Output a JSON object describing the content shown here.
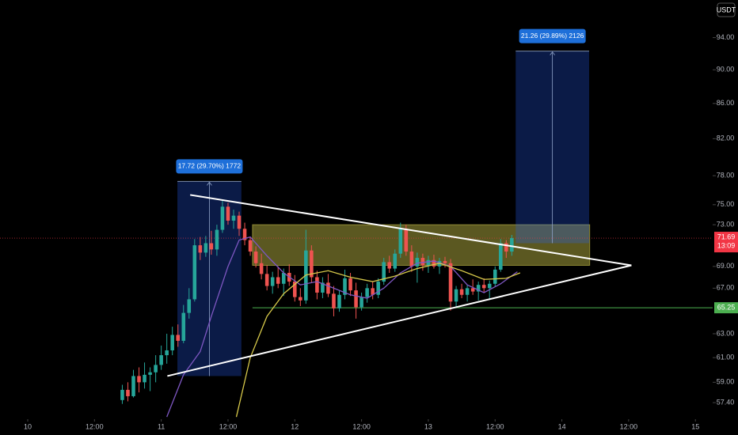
{
  "chart_data": {
    "type": "candlestick",
    "currency": "USDT",
    "x": [
      17,
      18,
      19,
      20,
      21,
      22,
      23,
      24,
      25,
      26,
      27,
      28,
      29,
      30,
      31,
      32,
      33,
      34,
      35,
      36,
      37,
      38,
      39,
      40,
      41,
      42,
      43,
      44,
      45,
      46,
      47,
      48,
      49,
      50,
      51,
      52,
      53,
      54,
      55,
      56,
      57,
      58,
      59,
      60,
      61,
      62,
      63,
      64,
      65,
      66,
      67,
      68,
      69,
      70,
      71,
      72,
      73,
      74,
      75,
      76,
      77,
      78,
      79,
      80,
      81,
      82,
      83,
      84,
      85,
      86,
      87
    ],
    "open": [
      57.6,
      58.4,
      57.9,
      59.5,
      59.0,
      59.6,
      59.8,
      60.4,
      61.2,
      61.6,
      62.9,
      62.4,
      64.8,
      66.0,
      71.0,
      70.3,
      71.2,
      70.6,
      72.5,
      74.8,
      73.4,
      73.9,
      72.6,
      71.5,
      70.4,
      69.3,
      68.3,
      67.2,
      68.0,
      67.4,
      68.4,
      67.6,
      66.2,
      65.9,
      70.5,
      68.0,
      66.6,
      67.5,
      66.5,
      65.2,
      66.4,
      67.9,
      66.8,
      65.3,
      66.2,
      67.0,
      66.4,
      67.6,
      69.4,
      68.8,
      70.2,
      72.6,
      70.4,
      69.0,
      69.8,
      69.1,
      69.6,
      69.0,
      69.5,
      69.3,
      65.8,
      66.9,
      66.4,
      67.0,
      66.7,
      67.3,
      67.0,
      67.4,
      68.7,
      71.2,
      70.4
    ],
    "high": [
      58.8,
      59.0,
      60.0,
      60.2,
      60.6,
      60.2,
      61.2,
      62.0,
      63.0,
      63.6,
      63.8,
      65.5,
      67.0,
      71.6,
      71.8,
      71.9,
      72.4,
      73.0,
      75.5,
      75.2,
      74.5,
      74.3,
      73.2,
      71.8,
      70.9,
      70.2,
      69.1,
      68.5,
      69.0,
      68.8,
      69.2,
      68.2,
      67.0,
      72.5,
      71.0,
      68.6,
      68.0,
      68.3,
      67.2,
      66.8,
      68.7,
      68.4,
      67.5,
      66.6,
      67.4,
      67.6,
      67.9,
      69.8,
      70.0,
      70.6,
      73.2,
      73.0,
      71.0,
      70.3,
      70.2,
      70.0,
      70.1,
      69.8,
      69.9,
      69.7,
      67.2,
      67.4,
      67.3,
      67.8,
      67.6,
      67.9,
      67.7,
      69.0,
      71.6,
      71.5,
      72.0
    ],
    "low": [
      57.3,
      57.5,
      57.8,
      58.2,
      58.5,
      58.3,
      59.0,
      60.0,
      60.5,
      61.2,
      61.9,
      62.2,
      64.3,
      65.8,
      69.6,
      69.9,
      70.1,
      70.0,
      72.2,
      73.0,
      72.6,
      71.9,
      71.0,
      70.0,
      68.9,
      67.8,
      66.8,
      66.5,
      67.0,
      66.3,
      67.2,
      65.8,
      65.4,
      65.6,
      67.5,
      66.0,
      66.1,
      66.2,
      64.5,
      64.9,
      66.0,
      66.3,
      64.3,
      65.0,
      65.7,
      66.0,
      66.1,
      67.3,
      68.4,
      68.5,
      69.8,
      70.0,
      68.5,
      67.5,
      68.6,
      68.4,
      68.8,
      68.3,
      68.9,
      65.0,
      65.3,
      66.1,
      65.8,
      66.4,
      65.9,
      66.6,
      66.0,
      67.1,
      68.5,
      69.8,
      70.0
    ],
    "close": [
      58.4,
      57.9,
      59.5,
      59.0,
      59.6,
      59.8,
      60.4,
      61.2,
      61.6,
      62.9,
      62.4,
      64.8,
      66.0,
      71.0,
      70.3,
      71.2,
      70.6,
      72.5,
      74.8,
      73.4,
      73.9,
      72.6,
      71.5,
      70.4,
      69.3,
      68.3,
      67.2,
      68.0,
      67.4,
      68.4,
      67.6,
      66.2,
      65.9,
      70.5,
      68.0,
      66.6,
      67.5,
      66.5,
      65.2,
      66.4,
      67.9,
      66.8,
      65.3,
      66.2,
      67.0,
      66.4,
      67.6,
      69.4,
      68.8,
      70.2,
      72.6,
      70.4,
      69.0,
      69.8,
      69.1,
      69.6,
      69.0,
      69.5,
      69.3,
      65.8,
      66.9,
      66.4,
      67.0,
      66.7,
      67.3,
      67.0,
      67.4,
      68.7,
      71.2,
      70.4,
      71.69
    ],
    "up_color": "#26a69a",
    "down_color": "#ef5350",
    "log_scale": true,
    "xlim": [
      -4.98,
      123.1
    ],
    "xticks": [
      {
        "value": 0,
        "label": "10"
      },
      {
        "value": 12,
        "label": "12:00"
      },
      {
        "value": 24,
        "label": "11"
      },
      {
        "value": 36,
        "label": "12:00"
      },
      {
        "value": 48,
        "label": "12"
      },
      {
        "value": 60,
        "label": "12:00"
      },
      {
        "value": 72,
        "label": "13"
      },
      {
        "value": 84,
        "label": "12:00"
      },
      {
        "value": 96,
        "label": "14"
      },
      {
        "value": 108,
        "label": "12:00"
      },
      {
        "value": 120,
        "label": "15"
      }
    ],
    "ylim": [
      56.13,
      98.9
    ],
    "yticks": [
      {
        "value": 57.4,
        "label": "57.40"
      },
      {
        "value": 59,
        "label": "59.00"
      },
      {
        "value": 61,
        "label": "61.00"
      },
      {
        "value": 63,
        "label": "63.00"
      },
      {
        "value": 67,
        "label": "67.00"
      },
      {
        "value": 69,
        "label": "69.00"
      },
      {
        "value": 73,
        "label": "73.00"
      },
      {
        "value": 75,
        "label": "75.00"
      },
      {
        "value": 78,
        "label": "78.00"
      },
      {
        "value": 82,
        "label": "82.00"
      },
      {
        "value": 86,
        "label": "86.00"
      },
      {
        "value": 90,
        "label": "90.00"
      },
      {
        "value": 94,
        "label": "94.00"
      }
    ],
    "last_price": {
      "value": 71.69,
      "color": "#f23645",
      "countdown": "13:09"
    },
    "hline": {
      "value": 65.25,
      "from": 40.4,
      "color": "#4caf50"
    },
    "zone": {
      "color": "#c9c34a",
      "x": [
        40.4,
        101.0
      ],
      "y": [
        69.1,
        73.0
      ]
    },
    "measures": [
      {
        "label": "17.72 (29.70%) 1772",
        "x": [
          26.9,
          38.4
        ],
        "y": [
          59.5,
          77.4
        ]
      },
      {
        "label": "21.26 (29.89%) 2126",
        "x": [
          87.7,
          100.9
        ],
        "y": [
          71.2,
          92.3
        ]
      }
    ],
    "trendlines": [
      {
        "color": "#ffffff",
        "points": [
          [
            29.2,
            76.0
          ],
          [
            108.5,
            69.1
          ]
        ]
      },
      {
        "color": "#ffffff",
        "points": [
          [
            25.1,
            59.5
          ],
          [
            108.5,
            69.1
          ]
        ]
      }
    ],
    "moving_averages": [
      {
        "color": "#7e57c2",
        "points": [
          [
            25,
            56.3
          ],
          [
            28,
            59.6
          ],
          [
            31,
            61.5
          ],
          [
            33,
            64.5
          ],
          [
            36,
            69
          ],
          [
            38,
            71.5
          ],
          [
            40,
            71.8
          ],
          [
            43,
            70
          ],
          [
            46,
            68.4
          ],
          [
            49,
            67.3
          ],
          [
            52,
            67.6
          ],
          [
            55,
            67
          ],
          [
            58,
            66.4
          ],
          [
            61,
            66.1
          ],
          [
            64,
            67
          ],
          [
            67,
            68.4
          ],
          [
            70,
            69.3
          ],
          [
            73,
            69.5
          ],
          [
            76,
            69
          ],
          [
            79,
            67.3
          ],
          [
            82,
            66.6
          ],
          [
            85,
            67.4
          ],
          [
            88,
            68.5
          ]
        ]
      },
      {
        "color": "#d6c84a",
        "points": [
          [
            37.5,
            56.3
          ],
          [
            40,
            61
          ],
          [
            43,
            64.5
          ],
          [
            46,
            66.5
          ],
          [
            50,
            68.2
          ],
          [
            54,
            68.6
          ],
          [
            58,
            68
          ],
          [
            62,
            67.6
          ],
          [
            66,
            68.1
          ],
          [
            70,
            68.8
          ],
          [
            74,
            69.3
          ],
          [
            78,
            68.6
          ],
          [
            82,
            67.8
          ],
          [
            86,
            67.9
          ],
          [
            88.5,
            68.4
          ]
        ]
      }
    ]
  }
}
